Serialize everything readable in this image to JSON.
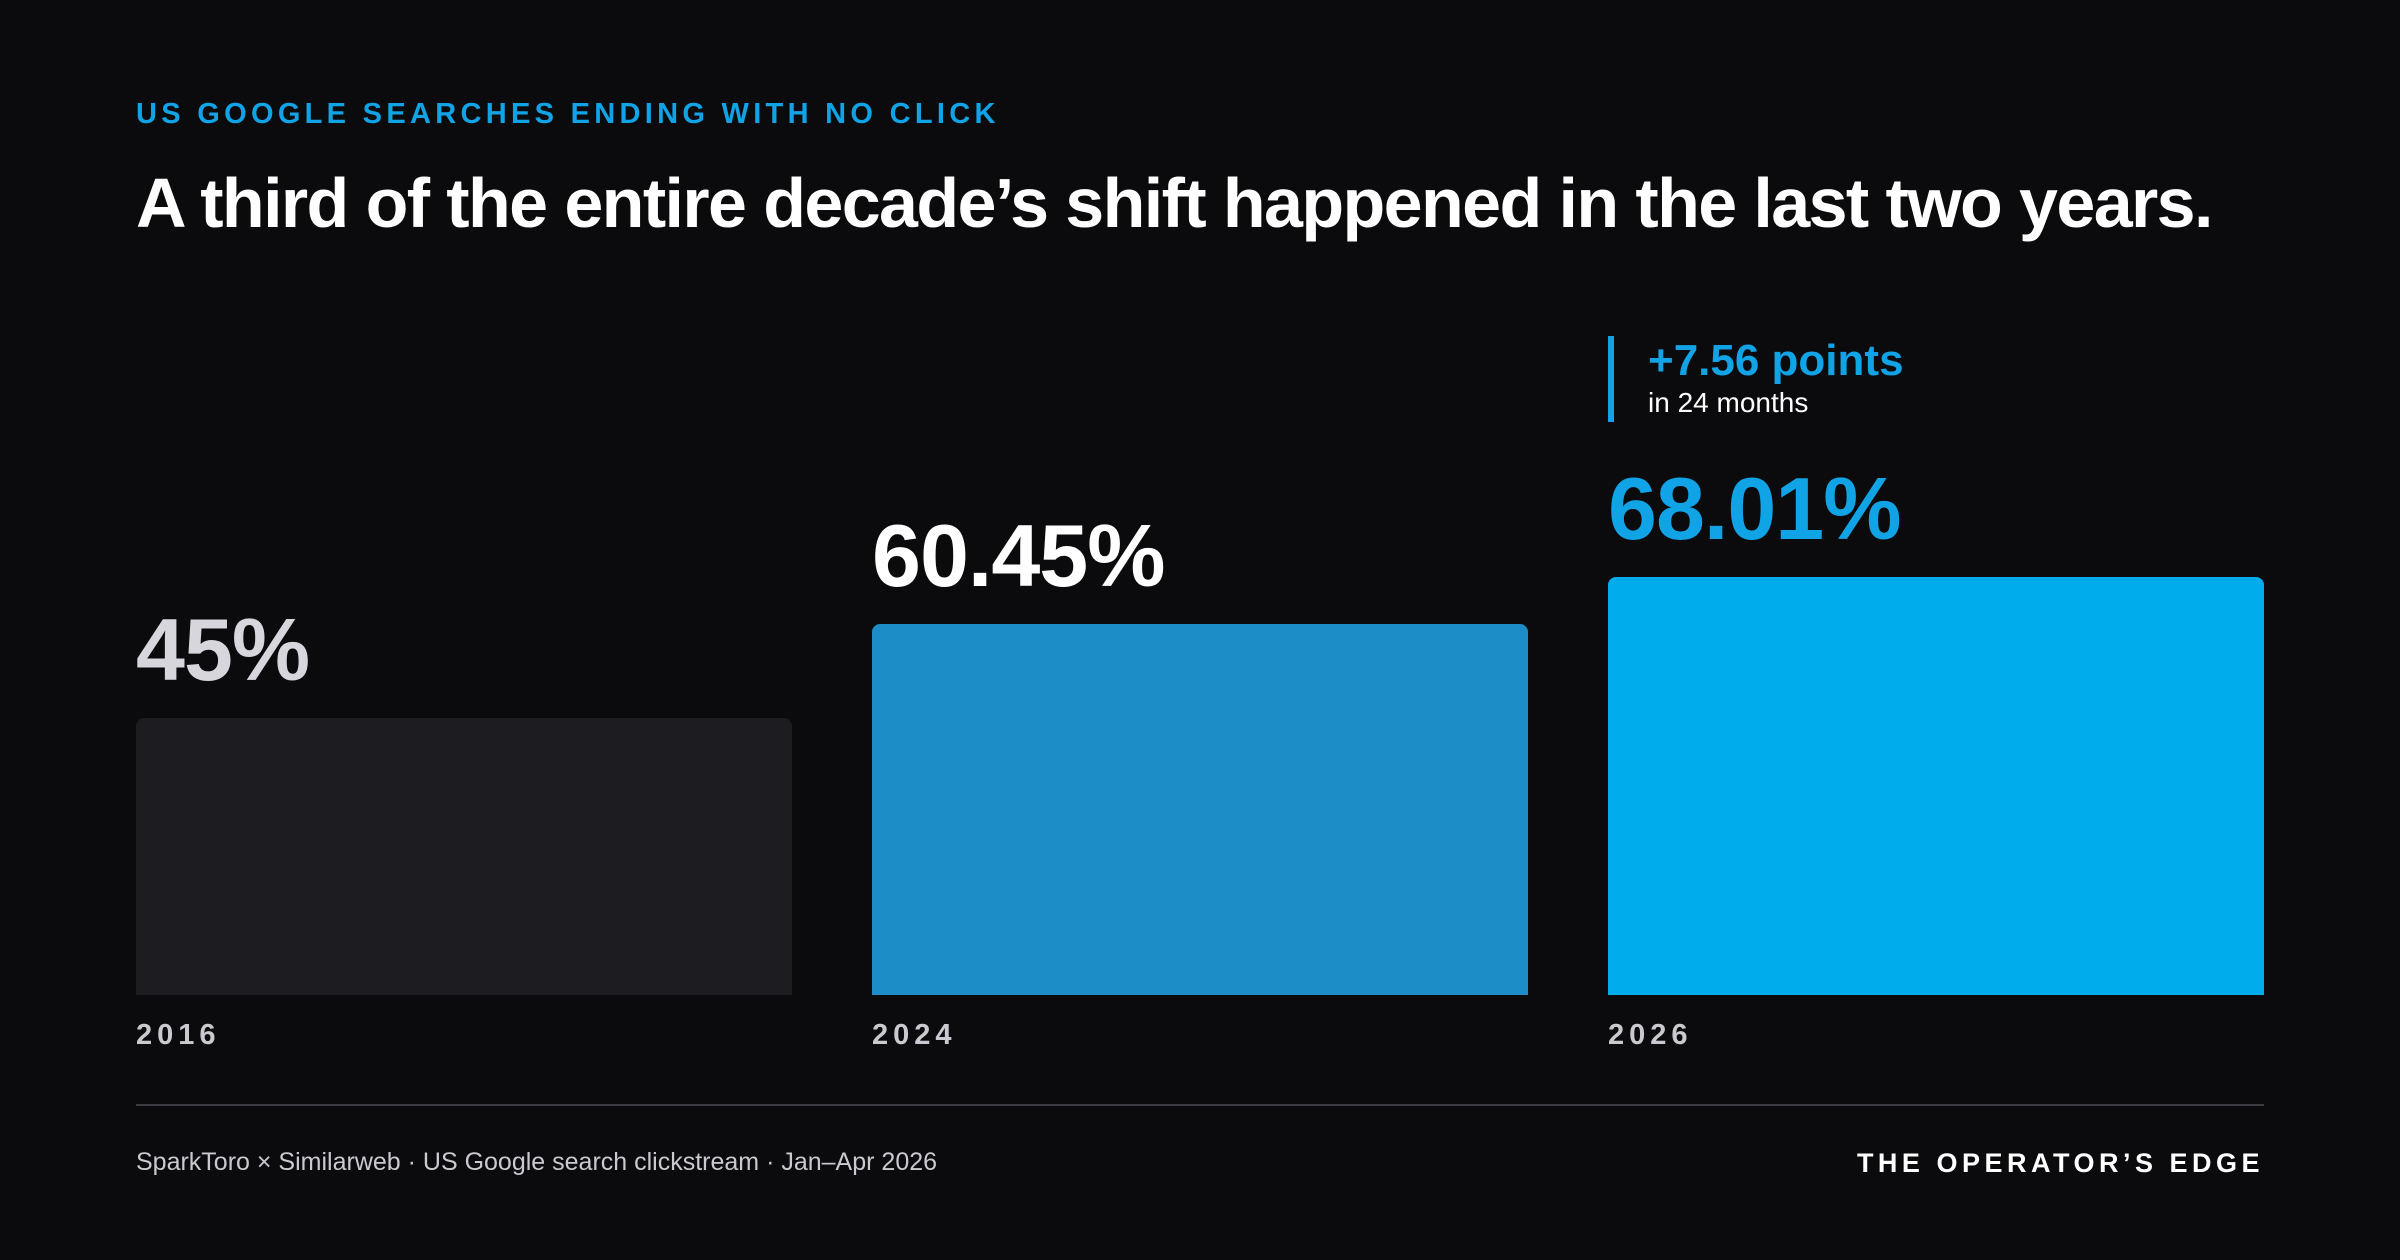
{
  "eyebrow": "US GOOGLE SEARCHES ENDING WITH NO CLICK",
  "headline": "A third of the entire decade’s shift happened in the last two years.",
  "callout": {
    "value": "+7.56 points",
    "caption": "in 24 months"
  },
  "footer": {
    "source": "SparkToro × Similarweb · US Google search clickstream · Jan–Apr 2026",
    "brand": "THE OPERATOR’S EDGE"
  },
  "colors": {
    "background": "#0b0b0d",
    "accent": "#10a3e6",
    "bar_2016": "#1d1d21",
    "bar_2024": "#1c8dc6",
    "bar_2026": "#00aceb",
    "label_2016": "#d6d6dc",
    "label_2024": "#ffffff",
    "label_2026": "#10a3e6"
  },
  "chart_data": {
    "type": "bar",
    "categories": [
      "2016",
      "2024",
      "2026"
    ],
    "values": [
      45,
      60.45,
      68.01
    ],
    "value_labels": [
      "45%",
      "60.45%",
      "68.01%"
    ],
    "title": "A third of the entire decade’s shift happened in the last two years.",
    "subtitle": "US GOOGLE SEARCHES ENDING WITH NO CLICK",
    "ylim": [
      0,
      100
    ],
    "grid": false,
    "legend": "none",
    "annotations": [
      {
        "category": "2026",
        "text": "+7.56 points",
        "subtext": "in 24 months"
      }
    ]
  }
}
